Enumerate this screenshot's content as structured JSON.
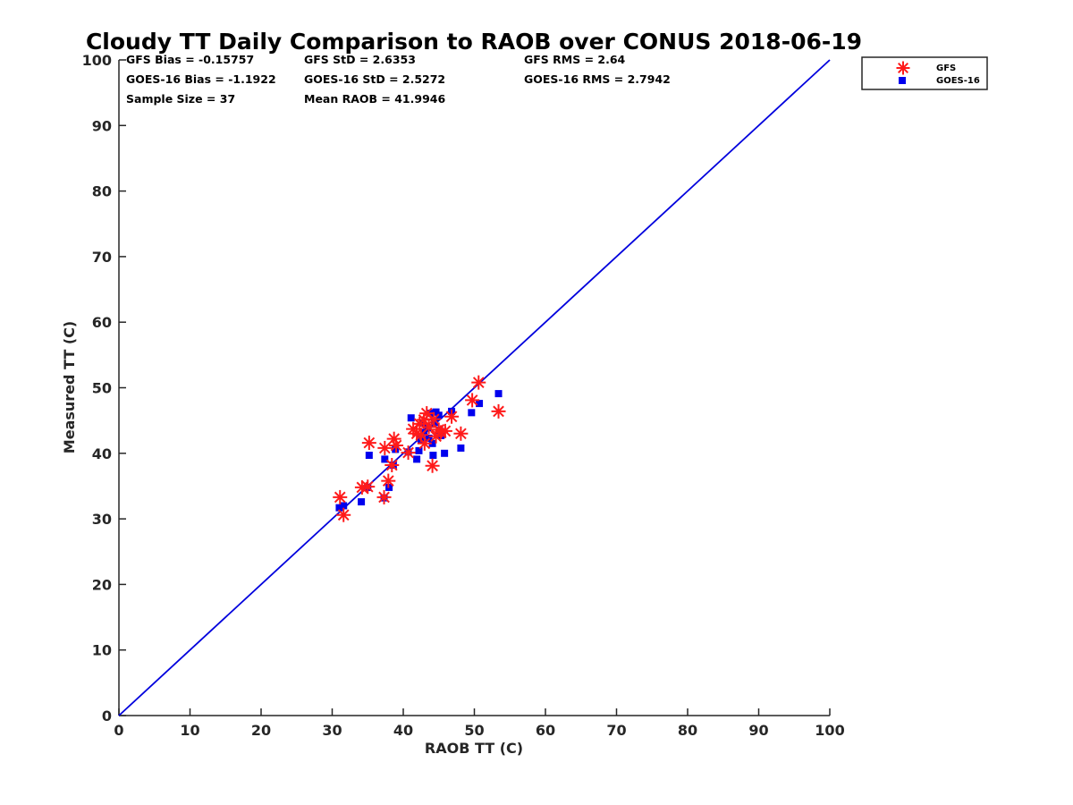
{
  "chart_data": {
    "type": "scatter",
    "title": "Cloudy TT Daily Comparison to RAOB over CONUS 2018-06-19",
    "xlabel": "RAOB TT (C)",
    "ylabel": "Measured TT (C)",
    "xlim": [
      0,
      100
    ],
    "ylim": [
      0,
      100
    ],
    "xticks": [
      "0",
      "10",
      "20",
      "30",
      "40",
      "50",
      "60",
      "70",
      "80",
      "90",
      "100"
    ],
    "yticks": [
      "0",
      "10",
      "20",
      "30",
      "40",
      "50",
      "60",
      "70",
      "80",
      "90",
      "100"
    ],
    "grid": false,
    "legend_position": "top-right outside",
    "reference_line": {
      "x": [
        0,
        100
      ],
      "y": [
        0,
        100
      ],
      "color": "#0000dd"
    },
    "series": [
      {
        "name": "GFS",
        "marker": "asterisk",
        "color": "#ff1a1a",
        "points": [
          [
            31.1,
            33.3
          ],
          [
            31.6,
            30.6
          ],
          [
            34.2,
            34.8
          ],
          [
            35.0,
            34.9
          ],
          [
            35.2,
            41.6
          ],
          [
            37.3,
            33.3
          ],
          [
            37.4,
            40.8
          ],
          [
            37.9,
            35.8
          ],
          [
            38.4,
            38.2
          ],
          [
            38.7,
            42.2
          ],
          [
            39.0,
            41.2
          ],
          [
            40.7,
            40.1
          ],
          [
            41.4,
            43.7
          ],
          [
            41.9,
            43.0
          ],
          [
            42.3,
            44.5
          ],
          [
            42.5,
            42.8
          ],
          [
            42.9,
            45.1
          ],
          [
            43.0,
            41.5
          ],
          [
            43.3,
            46.1
          ],
          [
            43.6,
            44.0
          ],
          [
            44.1,
            38.1
          ],
          [
            44.3,
            45.2
          ],
          [
            44.6,
            42.6
          ],
          [
            45.0,
            43.6
          ],
          [
            45.3,
            43.2
          ],
          [
            45.9,
            43.4
          ],
          [
            46.8,
            45.6
          ],
          [
            48.1,
            43.0
          ],
          [
            49.7,
            48.1
          ],
          [
            50.6,
            50.8
          ],
          [
            53.4,
            46.4
          ]
        ]
      },
      {
        "name": "GOES-16",
        "marker": "square",
        "color": "#0000ee",
        "points": [
          [
            31.0,
            31.7
          ],
          [
            31.6,
            32.0
          ],
          [
            34.1,
            32.6
          ],
          [
            35.0,
            34.8
          ],
          [
            35.2,
            39.7
          ],
          [
            37.3,
            33.2
          ],
          [
            37.4,
            39.1
          ],
          [
            38.0,
            34.8
          ],
          [
            38.6,
            38.2
          ],
          [
            38.9,
            40.6
          ],
          [
            40.7,
            40.2
          ],
          [
            41.1,
            45.4
          ],
          [
            41.9,
            39.1
          ],
          [
            42.2,
            40.4
          ],
          [
            42.5,
            42.1
          ],
          [
            42.7,
            44.6
          ],
          [
            42.9,
            43.2
          ],
          [
            43.4,
            43.9
          ],
          [
            43.6,
            42.3
          ],
          [
            43.8,
            46.1
          ],
          [
            44.1,
            41.5
          ],
          [
            44.2,
            39.7
          ],
          [
            44.4,
            44.7
          ],
          [
            44.6,
            46.3
          ],
          [
            45.0,
            45.8
          ],
          [
            45.1,
            43.5
          ],
          [
            45.3,
            42.7
          ],
          [
            45.8,
            40.0
          ],
          [
            46.8,
            46.4
          ],
          [
            48.1,
            40.8
          ],
          [
            49.6,
            46.2
          ],
          [
            50.7,
            47.6
          ],
          [
            53.4,
            49.1
          ]
        ]
      }
    ],
    "stats": {
      "gfs_bias": "GFS Bias = -0.15757",
      "gfs_std": "GFS StD = 2.6353",
      "gfs_rms": "GFS RMS = 2.64",
      "goes_bias": "GOES-16 Bias = -1.1922",
      "goes_std": "GOES-16 StD = 2.5272",
      "goes_rms": "GOES-16 RMS = 2.7942",
      "sample_size": "Sample Size = 37",
      "mean_raob": "Mean RAOB = 41.9946"
    }
  }
}
